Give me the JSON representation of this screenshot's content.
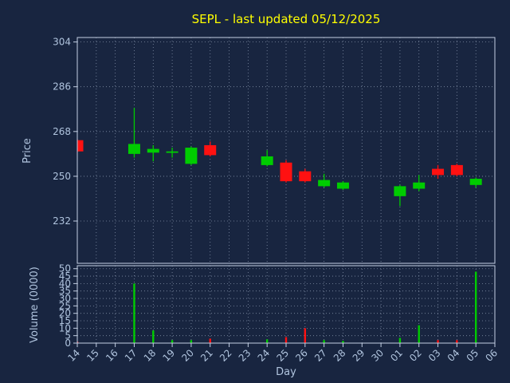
{
  "colors": {
    "background": "#182540",
    "title": "#ffff00",
    "axis_label": "#b0c4de",
    "tick_label": "#b0c4de",
    "spine": "#c3cfe3",
    "grid": "#93a1b8",
    "up": "#00cc00",
    "down": "#ff1111"
  },
  "chart_data": [
    {
      "type": "candlestick",
      "title": "SEPL - last updated 05/12/2025",
      "xlabel": "Day",
      "ylabel": "Price",
      "grid": true,
      "legend": "none",
      "categories": [
        "14",
        "15",
        "16",
        "17",
        "18",
        "19",
        "20",
        "21",
        "22",
        "23",
        "24",
        "25",
        "26",
        "27",
        "28",
        "29",
        "30",
        "01",
        "02",
        "03",
        "04",
        "05",
        "06"
      ],
      "ylim": [
        215,
        305.8
      ],
      "yticks": [
        304,
        286,
        268,
        250,
        232
      ],
      "candles": [
        {
          "day": "14",
          "open": 264.5,
          "high": 265,
          "low": 259.5,
          "close": 260
        },
        {
          "day": "17",
          "open": 259,
          "high": 277.5,
          "low": 257.5,
          "close": 263
        },
        {
          "day": "18",
          "open": 259.5,
          "high": 262.5,
          "low": 256,
          "close": 261
        },
        {
          "day": "19",
          "open": 259.5,
          "high": 261.5,
          "low": 257.5,
          "close": 260
        },
        {
          "day": "20",
          "open": 255,
          "high": 262,
          "low": 254.5,
          "close": 261.5
        },
        {
          "day": "21",
          "open": 262.5,
          "high": 264,
          "low": 258,
          "close": 258.5
        },
        {
          "day": "24",
          "open": 254.5,
          "high": 260.5,
          "low": 254,
          "close": 258
        },
        {
          "day": "25",
          "open": 255.5,
          "high": 256.5,
          "low": 247.5,
          "close": 248
        },
        {
          "day": "26",
          "open": 252,
          "high": 253,
          "low": 247.5,
          "close": 248
        },
        {
          "day": "27",
          "open": 246,
          "high": 251,
          "low": 245.5,
          "close": 248.5
        },
        {
          "day": "28",
          "open": 245,
          "high": 248,
          "low": 244.5,
          "close": 247.5
        },
        {
          "day": "01",
          "open": 242,
          "high": 246.5,
          "low": 238,
          "close": 246
        },
        {
          "day": "02",
          "open": 245,
          "high": 250.5,
          "low": 244,
          "close": 247.5
        },
        {
          "day": "03",
          "open": 253,
          "high": 254.5,
          "low": 249,
          "close": 250.5
        },
        {
          "day": "04",
          "open": 254.5,
          "high": 255,
          "low": 250,
          "close": 250.5
        },
        {
          "day": "05",
          "open": 246.5,
          "high": 249.5,
          "low": 245.5,
          "close": 249
        }
      ]
    },
    {
      "type": "bar",
      "title": "",
      "xlabel": "Day",
      "ylabel": "Volume (0000)",
      "grid": true,
      "legend": "none",
      "categories": [
        "14",
        "15",
        "16",
        "17",
        "18",
        "19",
        "20",
        "21",
        "22",
        "23",
        "24",
        "25",
        "26",
        "27",
        "28",
        "29",
        "30",
        "01",
        "02",
        "03",
        "04",
        "05",
        "06"
      ],
      "ylim": [
        0,
        52
      ],
      "yticks": [
        50,
        45,
        40,
        35,
        30,
        25,
        20,
        15,
        10,
        5,
        0
      ],
      "bars": [
        {
          "day": "14",
          "value": 1,
          "color": "down"
        },
        {
          "day": "17",
          "value": 40,
          "color": "up"
        },
        {
          "day": "18",
          "value": 8.5,
          "color": "up"
        },
        {
          "day": "19",
          "value": 2,
          "color": "up"
        },
        {
          "day": "20",
          "value": 2,
          "color": "up"
        },
        {
          "day": "21",
          "value": 3,
          "color": "down"
        },
        {
          "day": "24",
          "value": 2.5,
          "color": "up"
        },
        {
          "day": "25",
          "value": 4,
          "color": "down"
        },
        {
          "day": "26",
          "value": 10,
          "color": "down"
        },
        {
          "day": "27",
          "value": 2,
          "color": "up"
        },
        {
          "day": "28",
          "value": 1.5,
          "color": "up"
        },
        {
          "day": "01",
          "value": 3.5,
          "color": "up"
        },
        {
          "day": "02",
          "value": 12,
          "color": "up"
        },
        {
          "day": "03",
          "value": 2,
          "color": "down"
        },
        {
          "day": "04",
          "value": 2,
          "color": "down"
        },
        {
          "day": "05",
          "value": 48,
          "color": "up"
        }
      ]
    }
  ]
}
